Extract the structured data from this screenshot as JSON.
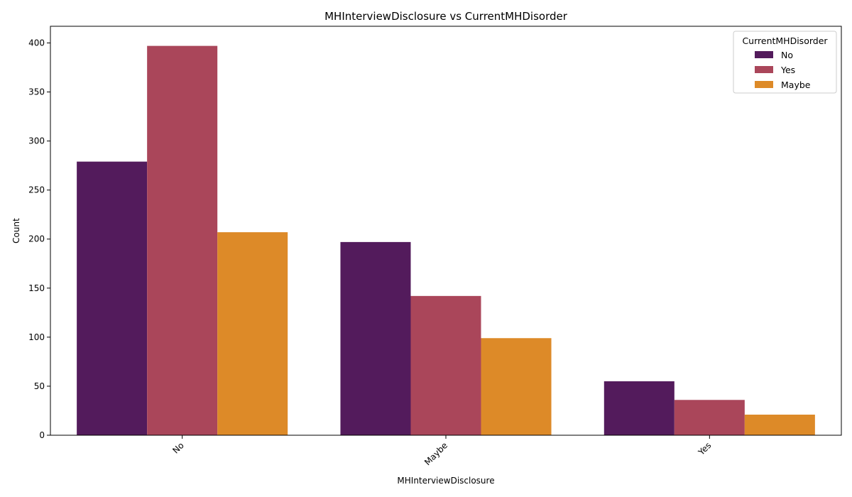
{
  "chart_data": {
    "type": "bar",
    "title": "MHInterviewDisclosure vs CurrentMHDisorder",
    "xlabel": "MHInterviewDisclosure",
    "ylabel": "Count",
    "categories": [
      "No",
      "Maybe",
      "Yes"
    ],
    "series": [
      {
        "name": "No",
        "color": "#531b5c",
        "values": [
          279,
          197,
          55
        ]
      },
      {
        "name": "Yes",
        "color": "#aa465a",
        "values": [
          397,
          142,
          36
        ]
      },
      {
        "name": "Maybe",
        "color": "#dd8a28",
        "values": [
          207,
          99,
          21
        ]
      }
    ],
    "ylim": [
      0,
      417
    ],
    "yticks": [
      0,
      50,
      100,
      150,
      200,
      250,
      300,
      350,
      400
    ],
    "legend": {
      "title": "CurrentMHDisorder",
      "placement": "top-right"
    },
    "grid": false
  }
}
